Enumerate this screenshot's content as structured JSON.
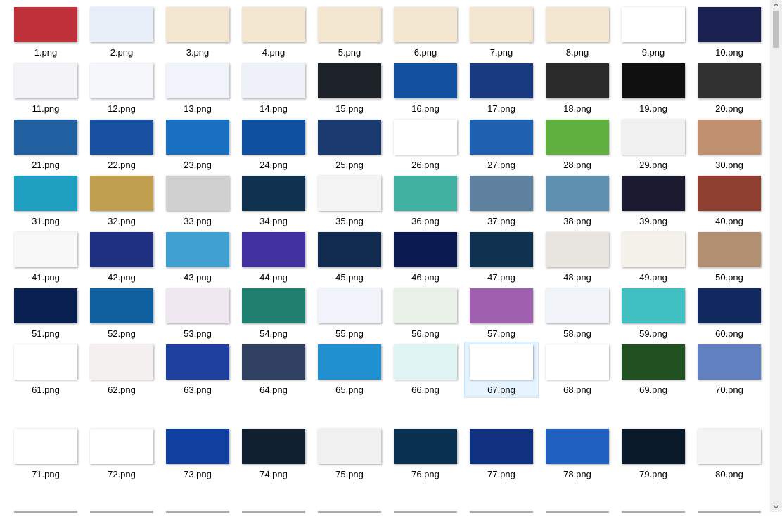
{
  "items": [
    {
      "name": "1.png",
      "color": "#c0303a"
    },
    {
      "name": "2.png",
      "color": "#e8eef8"
    },
    {
      "name": "3.png",
      "color": "#f2e6d0"
    },
    {
      "name": "4.png",
      "color": "#f2e6d0"
    },
    {
      "name": "5.png",
      "color": "#f2e6d0"
    },
    {
      "name": "6.png",
      "color": "#f2e6d0"
    },
    {
      "name": "7.png",
      "color": "#f2e6d0"
    },
    {
      "name": "8.png",
      "color": "#f2e6d0"
    },
    {
      "name": "9.png",
      "color": "#ffffff"
    },
    {
      "name": "10.png",
      "color": "#1a2050"
    },
    {
      "name": "11.png",
      "color": "#f4f4f8"
    },
    {
      "name": "12.png",
      "color": "#f4f6fa"
    },
    {
      "name": "13.png",
      "color": "#f0f4fa"
    },
    {
      "name": "14.png",
      "color": "#eef2f8"
    },
    {
      "name": "15.png",
      "color": "#1c2228"
    },
    {
      "name": "16.png",
      "color": "#1450a0"
    },
    {
      "name": "17.png",
      "color": "#1a3a80"
    },
    {
      "name": "18.png",
      "color": "#2a2a2a"
    },
    {
      "name": "19.png",
      "color": "#101010"
    },
    {
      "name": "20.png",
      "color": "#303030"
    },
    {
      "name": "21.png",
      "color": "#2060a0"
    },
    {
      "name": "22.png",
      "color": "#1a50a0"
    },
    {
      "name": "23.png",
      "color": "#1a70c0"
    },
    {
      "name": "24.png",
      "color": "#1050a0"
    },
    {
      "name": "25.png",
      "color": "#1a3a70"
    },
    {
      "name": "26.png",
      "color": "#ffffff"
    },
    {
      "name": "27.png",
      "color": "#2060b0"
    },
    {
      "name": "28.png",
      "color": "#60b040"
    },
    {
      "name": "29.png",
      "color": "#f0f0f0"
    },
    {
      "name": "30.png",
      "color": "#c09070"
    },
    {
      "name": "31.png",
      "color": "#20a0c0"
    },
    {
      "name": "32.png",
      "color": "#c0a050"
    },
    {
      "name": "33.png",
      "color": "#d0d0d0"
    },
    {
      "name": "34.png",
      "color": "#103050"
    },
    {
      "name": "35.png",
      "color": "#f4f4f4"
    },
    {
      "name": "36.png",
      "color": "#40b0a0"
    },
    {
      "name": "37.png",
      "color": "#6080a0"
    },
    {
      "name": "38.png",
      "color": "#6090b0"
    },
    {
      "name": "39.png",
      "color": "#1a1a30"
    },
    {
      "name": "40.png",
      "color": "#904030"
    },
    {
      "name": "41.png",
      "color": "#f8f8f8"
    },
    {
      "name": "42.png",
      "color": "#203080"
    },
    {
      "name": "43.png",
      "color": "#40a0d0"
    },
    {
      "name": "44.png",
      "color": "#4030a0"
    },
    {
      "name": "45.png",
      "color": "#102a50"
    },
    {
      "name": "46.png",
      "color": "#0a1a50"
    },
    {
      "name": "47.png",
      "color": "#103050"
    },
    {
      "name": "48.png",
      "color": "#e8e4e0"
    },
    {
      "name": "49.png",
      "color": "#f4f0ea"
    },
    {
      "name": "50.png",
      "color": "#b09070"
    },
    {
      "name": "51.png",
      "color": "#0a2050"
    },
    {
      "name": "52.png",
      "color": "#1060a0"
    },
    {
      "name": "53.png",
      "color": "#f0e8f0"
    },
    {
      "name": "54.png",
      "color": "#208070"
    },
    {
      "name": "55.png",
      "color": "#f0f4fa"
    },
    {
      "name": "56.png",
      "color": "#e8f0e8"
    },
    {
      "name": "57.png",
      "color": "#a060b0"
    },
    {
      "name": "58.png",
      "color": "#f0f4f8"
    },
    {
      "name": "59.png",
      "color": "#40c0c0"
    },
    {
      "name": "60.png",
      "color": "#102a60"
    },
    {
      "name": "61.png",
      "color": "#ffffff"
    },
    {
      "name": "62.png",
      "color": "#f4f0f0"
    },
    {
      "name": "63.png",
      "color": "#2040a0"
    },
    {
      "name": "64.png",
      "color": "#304060"
    },
    {
      "name": "65.png",
      "color": "#2090d0"
    },
    {
      "name": "66.png",
      "color": "#e0f4f4"
    },
    {
      "name": "67.png",
      "color": "#ffffff",
      "selected": true
    },
    {
      "name": "68.png",
      "color": "#ffffff"
    },
    {
      "name": "69.png",
      "color": "#205020"
    },
    {
      "name": "70.png",
      "color": "#6080c0"
    },
    {
      "name": "71.png",
      "color": "#ffffff"
    },
    {
      "name": "72.png",
      "color": "#ffffff"
    },
    {
      "name": "73.png",
      "color": "#1040a0"
    },
    {
      "name": "74.png",
      "color": "#102030"
    },
    {
      "name": "75.png",
      "color": "#f0f0f0"
    },
    {
      "name": "76.png",
      "color": "#0a3050"
    },
    {
      "name": "77.png",
      "color": "#103080"
    },
    {
      "name": "78.png",
      "color": "#2060c0"
    },
    {
      "name": "79.png",
      "color": "#0a1a2a"
    },
    {
      "name": "80.png",
      "color": "#f4f4f4"
    }
  ]
}
